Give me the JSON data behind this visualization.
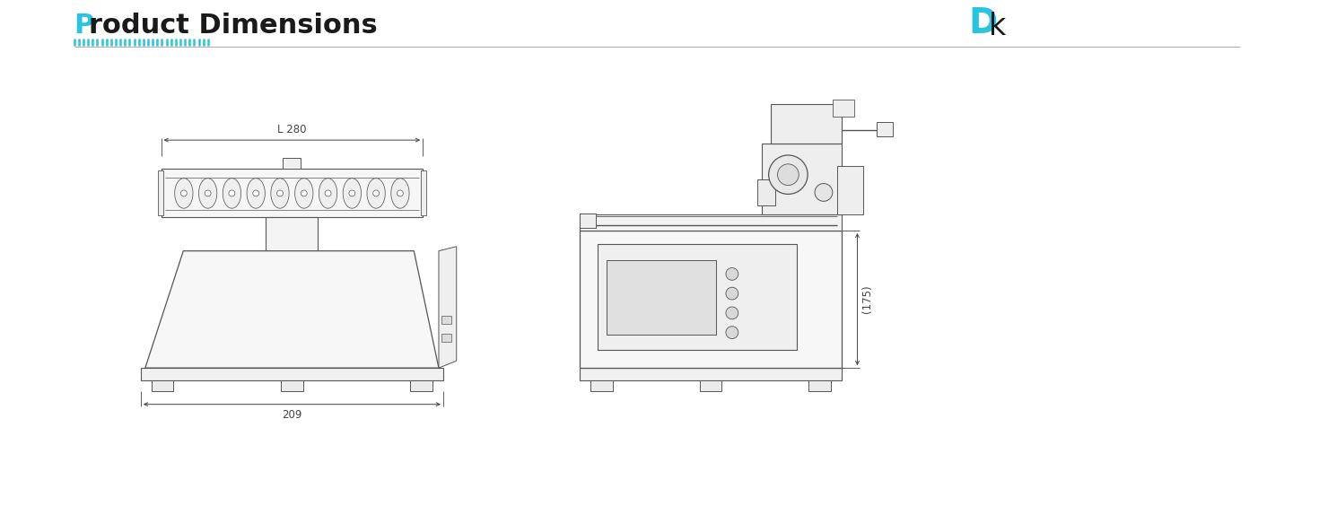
{
  "title_P": "P",
  "title_rest": "roduct Dimensions",
  "title_P_color": "#29c4e0",
  "title_color": "#1a1a1a",
  "bg_color": "#ffffff",
  "line_color": "#555555",
  "dim_color": "#444444",
  "deco_color": "#29c4e0",
  "logo_D_color": "#29c4e0",
  "logo_k_color": "#1a1a1a",
  "header_line_color": "#aaaaaa",
  "dim_L280": "L 280",
  "dim_209": "209",
  "dim_175": "(175)",
  "title_fontsize": 22,
  "dim_fontsize": 8.5
}
